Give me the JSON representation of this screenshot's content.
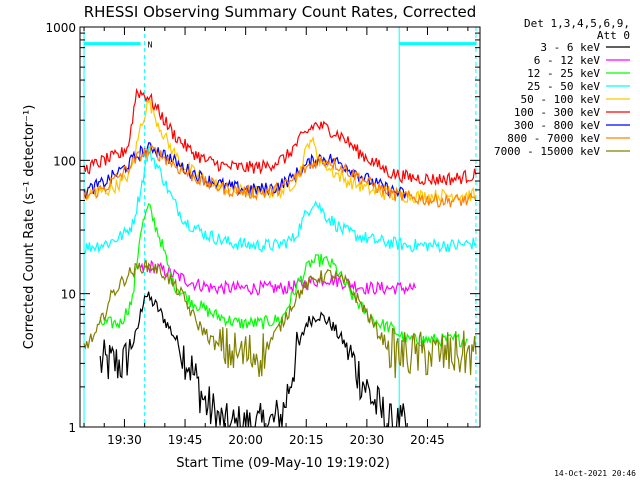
{
  "chart_data": {
    "type": "line",
    "title": "RHESSI Observing Summary Count Rates, Corrected",
    "xlabel": "Start Time (09-May-10 19:19:02)",
    "ylabel": "Corrected Count Rate (s⁻¹ detector⁻¹)",
    "y_scale": "log",
    "ylim": [
      1,
      1000
    ],
    "xlim": [
      "19:19",
      "20:58"
    ],
    "x_ticks": [
      "19:30",
      "19:45",
      "20:00",
      "20:15",
      "20:30",
      "20:45"
    ],
    "y_ticks": [
      "1",
      "10",
      "100",
      "1000"
    ],
    "legend_header": [
      "Det 1,3,4,5,6,9,",
      "Att 0"
    ],
    "legend_placement": "right",
    "timestamp": "14-Oct-2021 20:46",
    "flag_marker": "N",
    "series": [
      {
        "name": "3 - 6 keV",
        "color": "#000000",
        "x": [
          "19:24",
          "19:30",
          "19:33",
          "19:35",
          "19:38",
          "19:42",
          "19:46",
          "19:50",
          "19:55",
          "20:00",
          "20:05",
          "20:09",
          "20:12",
          "20:15",
          "20:18",
          "20:21",
          "20:25",
          "20:28",
          "20:32",
          "20:36",
          "20:40"
        ],
        "y": [
          3,
          3,
          5,
          10,
          8,
          5,
          3,
          1.5,
          1,
          1,
          1,
          1.2,
          3,
          6,
          7,
          6,
          4,
          2.5,
          1.5,
          1,
          1
        ]
      },
      {
        "name": "6 - 12 keV",
        "color": "#ff00ff",
        "x": [
          "19:34",
          "19:37",
          "19:42",
          "19:47",
          "19:52",
          "19:58",
          "20:04",
          "20:10",
          "20:15",
          "20:20",
          "20:25",
          "20:30",
          "20:36",
          "20:42"
        ],
        "y": [
          15,
          16,
          14,
          12,
          11,
          11,
          11,
          11,
          12,
          13,
          12,
          11,
          11,
          11
        ]
      },
      {
        "name": "12 - 25 keV",
        "color": "#00ff00",
        "x": [
          "19:24",
          "19:29",
          "19:32",
          "19:34",
          "19:36",
          "19:39",
          "19:42",
          "19:46",
          "19:52",
          "19:58",
          "20:04",
          "20:09",
          "20:13",
          "20:16",
          "20:19",
          "20:22",
          "20:26",
          "20:30",
          "20:33",
          "20:36",
          "20:40",
          "20:45",
          "20:50",
          "20:55"
        ],
        "y": [
          6,
          6,
          9,
          30,
          45,
          25,
          12,
          9,
          7,
          6,
          6,
          6.5,
          12,
          17,
          18,
          16,
          10,
          7,
          6,
          5.5,
          4.5,
          4.5,
          4.5,
          4.5
        ]
      },
      {
        "name": "25 - 50 keV",
        "color": "#00ffff",
        "x": [
          "19:20",
          "19:26",
          "19:30",
          "19:32",
          "19:34",
          "19:36",
          "19:39",
          "19:42",
          "19:45",
          "19:50",
          "19:56",
          "20:02",
          "20:08",
          "20:12",
          "20:15",
          "20:17",
          "20:20",
          "20:24",
          "20:28",
          "20:32",
          "20:36",
          "20:40",
          "20:46",
          "20:52",
          "20:57"
        ],
        "y": [
          22,
          24,
          28,
          33,
          60,
          120,
          80,
          50,
          35,
          28,
          24,
          23,
          23,
          26,
          40,
          50,
          38,
          30,
          27,
          25,
          24,
          23,
          23,
          23,
          24
        ]
      },
      {
        "name": "50 - 100 keV",
        "color": "#ffc800",
        "x": [
          "19:20",
          "19:26",
          "19:30",
          "19:32",
          "19:34",
          "19:36",
          "19:38",
          "19:41",
          "19:44",
          "19:50",
          "19:56",
          "20:02",
          "20:07",
          "20:10",
          "20:13",
          "20:16",
          "20:18",
          "20:21",
          "20:25",
          "20:28",
          "20:32",
          "20:36",
          "20:40",
          "20:46",
          "20:52",
          "20:57"
        ],
        "y": [
          55,
          60,
          70,
          90,
          180,
          280,
          200,
          130,
          95,
          70,
          60,
          58,
          58,
          60,
          75,
          150,
          105,
          85,
          70,
          65,
          58,
          55,
          54,
          54,
          55,
          55
        ]
      },
      {
        "name": "100 - 300 keV",
        "color": "#ff0000",
        "x": [
          "19:20",
          "19:25",
          "19:29",
          "19:31",
          "19:33",
          "19:36",
          "19:39",
          "19:42",
          "19:46",
          "19:50",
          "19:55",
          "20:00",
          "20:05",
          "20:10",
          "20:14",
          "20:17",
          "20:20",
          "20:24",
          "20:28",
          "20:32",
          "20:36",
          "20:40",
          "20:46",
          "20:52",
          "20:57"
        ],
        "y": [
          85,
          100,
          110,
          130,
          330,
          300,
          220,
          160,
          120,
          100,
          90,
          88,
          90,
          105,
          150,
          185,
          175,
          150,
          115,
          95,
          80,
          75,
          72,
          73,
          78
        ]
      },
      {
        "name": "300 - 800 keV",
        "color": "#0000ff",
        "x": [
          "19:20",
          "19:25",
          "19:30",
          "19:34",
          "19:37",
          "19:40",
          "19:44",
          "19:50",
          "19:56",
          "20:02",
          "20:07",
          "20:11",
          "20:15",
          "20:18",
          "20:21",
          "20:25",
          "20:29",
          "20:33",
          "20:37",
          "20:40"
        ],
        "y": [
          58,
          68,
          88,
          115,
          125,
          110,
          90,
          72,
          63,
          60,
          62,
          72,
          92,
          105,
          102,
          90,
          75,
          65,
          58,
          55
        ]
      },
      {
        "name": "800 - 7000 keV",
        "color": "#ff8000",
        "x": [
          "19:20",
          "19:25",
          "19:30",
          "19:34",
          "19:37",
          "19:40",
          "19:44",
          "19:50",
          "19:56",
          "20:02",
          "20:07",
          "20:11",
          "20:15",
          "20:18",
          "20:21",
          "20:25",
          "20:29",
          "20:33",
          "20:37",
          "20:42",
          "20:48",
          "20:54",
          "20:57"
        ],
        "y": [
          53,
          62,
          82,
          110,
          118,
          105,
          85,
          68,
          60,
          57,
          59,
          68,
          88,
          100,
          98,
          85,
          72,
          62,
          55,
          52,
          50,
          50,
          50
        ]
      },
      {
        "name": "7000 - 15000 keV",
        "color": "#808000",
        "x": [
          "19:20",
          "19:23",
          "19:27",
          "19:31",
          "19:34",
          "19:37",
          "19:40",
          "19:44",
          "19:48",
          "19:53",
          "19:58",
          "20:04",
          "20:09",
          "20:13",
          "20:17",
          "20:21",
          "20:25",
          "20:29",
          "20:33",
          "20:37",
          "20:42",
          "20:48",
          "20:57"
        ],
        "y": [
          4,
          5,
          10,
          14,
          16,
          16,
          14,
          10,
          6,
          4,
          3.5,
          3.5,
          6,
          10,
          13,
          14,
          12,
          8,
          5,
          3.5,
          3.5,
          3.5,
          3.5
        ]
      }
    ]
  }
}
